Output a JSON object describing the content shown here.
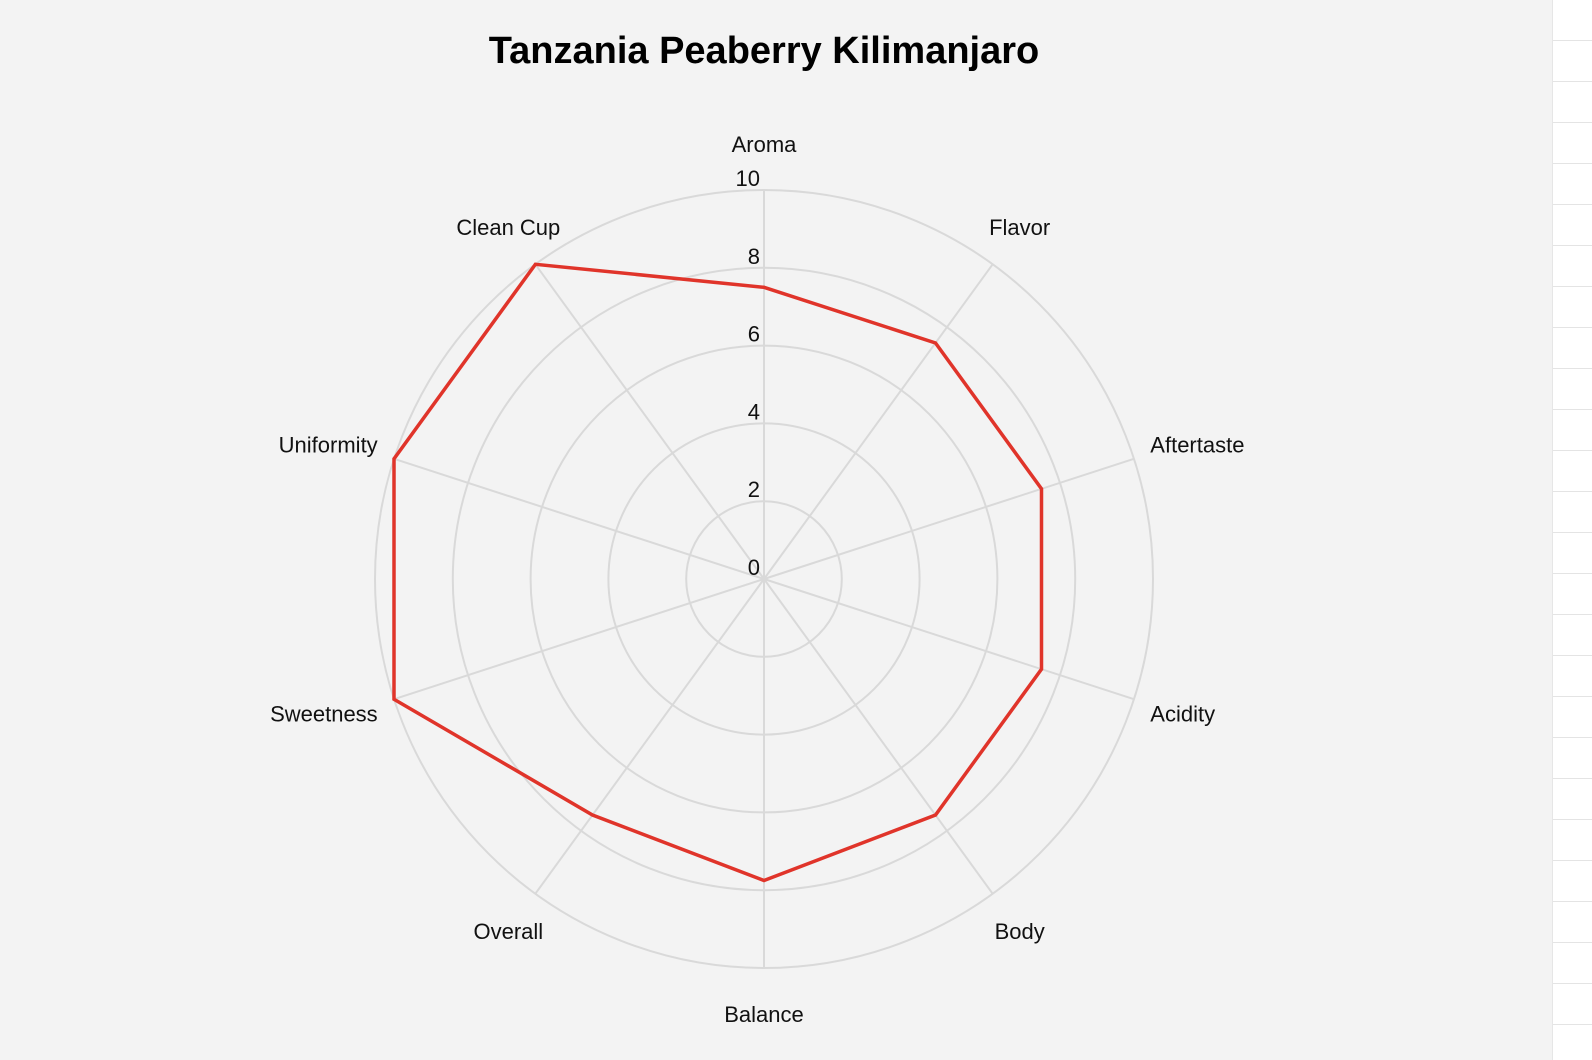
{
  "chart_data": {
    "type": "radar",
    "title": "Tanzania Peaberry Kilimanjaro",
    "axes": [
      "Aroma",
      "Flavor",
      "Aftertaste",
      "Acidity",
      "Body",
      "Balance",
      "Overall",
      "Sweetness",
      "Uniformity",
      "Clean Cup"
    ],
    "series": [
      {
        "values": [
          7.5,
          7.5,
          7.5,
          7.5,
          7.5,
          7.75,
          7.5,
          10,
          10,
          10
        ]
      }
    ],
    "rlim": [
      0,
      10
    ],
    "r_ticks": [
      0,
      2,
      4,
      6,
      8,
      10
    ],
    "grid": true,
    "colors": {
      "series": "#e0342a",
      "grid": "#d9d9d9",
      "background": "#f3f3f3"
    }
  }
}
